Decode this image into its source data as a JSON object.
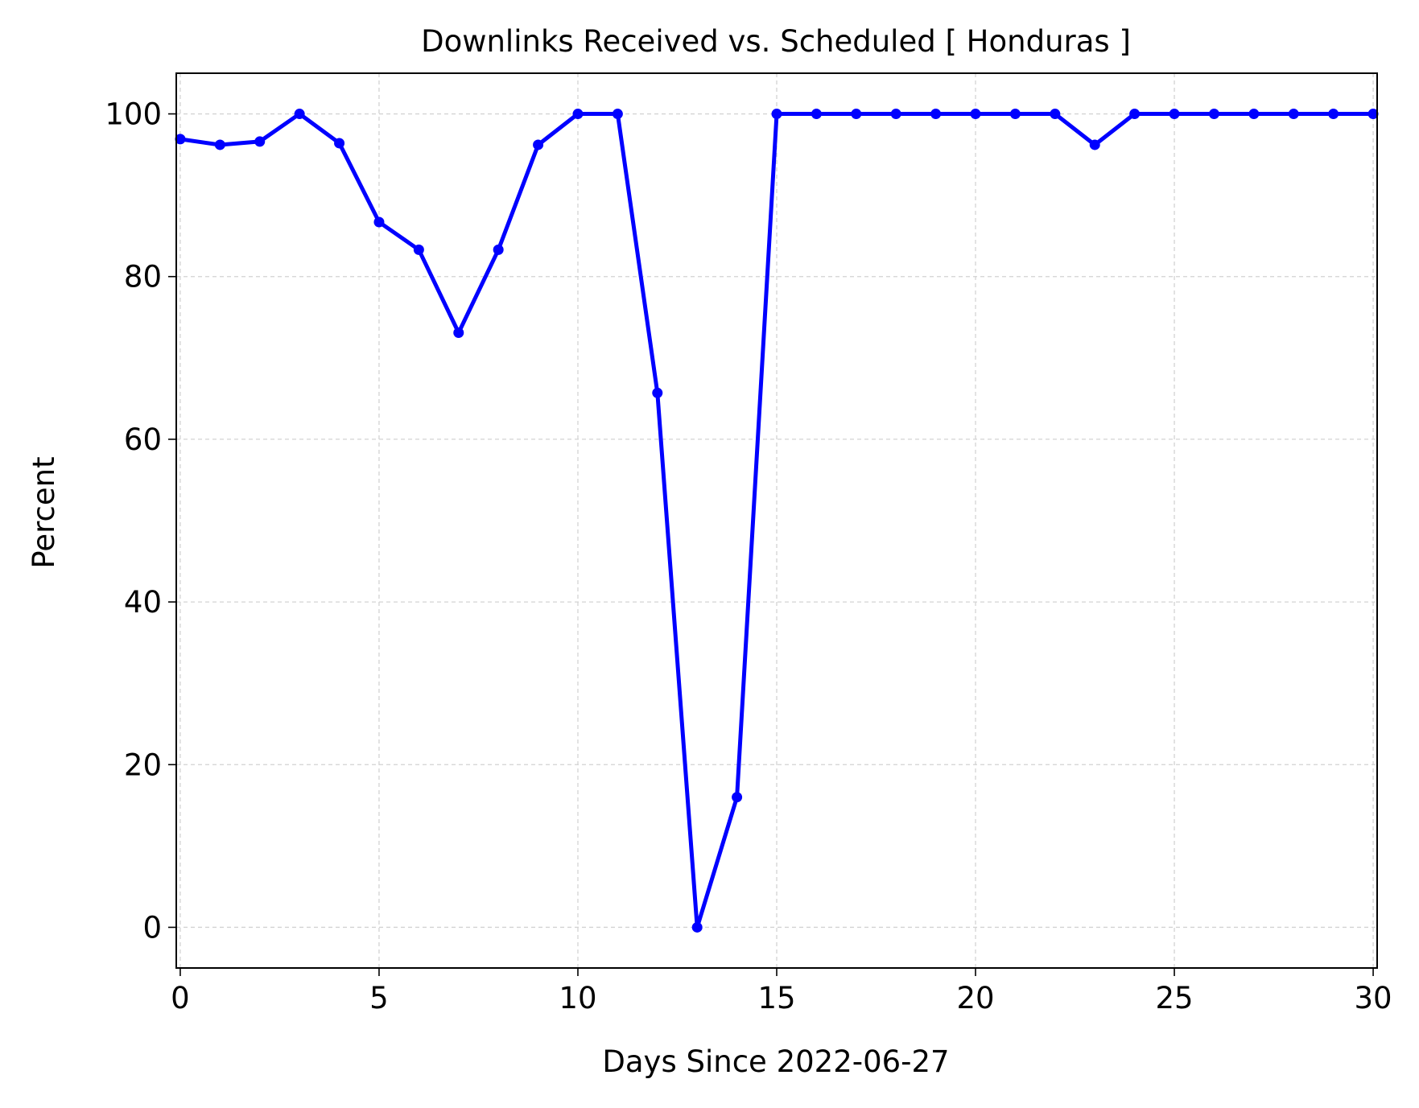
{
  "chart_data": {
    "type": "line",
    "title": "Downlinks Received vs. Scheduled [ Honduras ]",
    "xlabel": "Days Since 2022-06-27",
    "ylabel": "Percent",
    "xlim": [
      -0.1,
      30.1
    ],
    "ylim": [
      -5,
      105
    ],
    "xticks": [
      0,
      5,
      10,
      15,
      20,
      25,
      30
    ],
    "yticks": [
      0,
      20,
      40,
      60,
      80,
      100
    ],
    "grid": true,
    "series": [
      {
        "color": "#0000ff",
        "marker": "circle",
        "x": [
          0,
          1,
          2,
          3,
          4,
          5,
          6,
          7,
          8,
          9,
          10,
          11,
          12,
          13,
          14,
          15,
          16,
          17,
          18,
          19,
          20,
          21,
          22,
          23,
          24,
          25,
          26,
          27,
          28,
          29,
          30
        ],
        "y": [
          96.9,
          96.2,
          96.6,
          100,
          96.4,
          86.7,
          83.3,
          73.1,
          83.3,
          96.2,
          100,
          100,
          65.7,
          0,
          16,
          100,
          100,
          100,
          100,
          100,
          100,
          100,
          100,
          96.2,
          100,
          100,
          100,
          100,
          100,
          100,
          100
        ]
      }
    ]
  }
}
